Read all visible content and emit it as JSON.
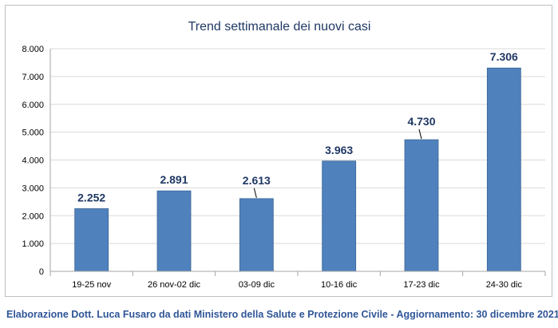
{
  "chart_data": {
    "type": "bar",
    "title": "Trend settimanale dei nuovi casi",
    "categories": [
      "19-25 nov",
      "26 nov-02 dic",
      "03-09 dic",
      "10-16 dic",
      "17-23 dic",
      "24-30 dic"
    ],
    "values": [
      2252,
      2891,
      2613,
      3963,
      4730,
      7306
    ],
    "value_labels": [
      "2.252",
      "2.891",
      "2.613",
      "3.963",
      "4.730",
      "7.306"
    ],
    "y_ticks": [
      "0",
      "1.000",
      "2.000",
      "3.000",
      "4.000",
      "5.000",
      "6.000",
      "7.000",
      "8.000"
    ],
    "ylim": [
      0,
      8000
    ],
    "xlabel": "",
    "ylabel": "",
    "grid": true,
    "legend": "none",
    "bar_color": "#4f81bd",
    "label_color": "#1f3864"
  },
  "footer": {
    "credit": "Elaborazione Dott. Luca Fusaro da dati Ministero della Salute e Protezione Civile - Aggiornamento: 30 dicembre 2021"
  }
}
